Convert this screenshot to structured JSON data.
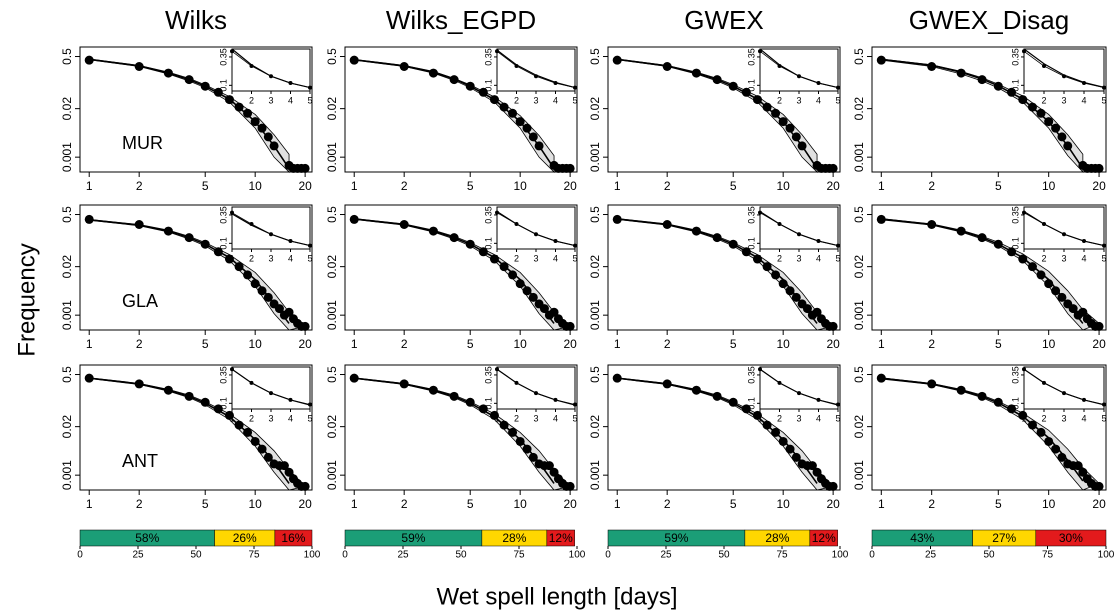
{
  "chart_data": {
    "type": "panel-grid",
    "x_label": "Wet spell length [days]",
    "y_label": "Frequency",
    "columns": [
      "Wilks",
      "Wilks_EGPD",
      "GWEX",
      "GWEX_Disag"
    ],
    "log_x": true,
    "log_y": true,
    "xlim": [
      0.88,
      22
    ],
    "xticks": [
      1,
      2,
      5,
      10,
      20
    ],
    "ylim": [
      0.0004,
      0.9
    ],
    "yticks": [
      0.5,
      0.02,
      0.001
    ],
    "band_color": "#e0e0e0",
    "line_color": "#000000",
    "inset": {
      "xlim": [
        1,
        5
      ],
      "xticks": [
        1,
        2,
        3,
        4,
        5
      ],
      "ylim": [
        0.05,
        0.42
      ],
      "yticks": [
        0.1,
        0.35
      ]
    },
    "rows": [
      {
        "station": "MUR",
        "x": [
          1,
          2,
          3,
          4,
          5,
          6,
          7,
          8,
          9,
          10,
          11,
          12,
          13,
          14,
          15,
          16,
          17,
          18,
          19,
          20
        ],
        "observed": [
          0.4,
          0.27,
          0.18,
          0.12,
          0.08,
          0.055,
          0.035,
          0.022,
          0.015,
          0.009,
          0.006,
          0.0035,
          0.002,
          null,
          null,
          0.0006,
          0.0005,
          0.0005,
          0.0005,
          0.0005
        ]
      },
      {
        "station": "GLA",
        "x": [
          1,
          2,
          3,
          4,
          5,
          6,
          7,
          8,
          9,
          10,
          11,
          12,
          13,
          14,
          15,
          16,
          17,
          18,
          19,
          20
        ],
        "observed": [
          0.37,
          0.27,
          0.18,
          0.12,
          0.08,
          0.05,
          0.032,
          0.02,
          0.012,
          0.007,
          0.0045,
          0.003,
          0.002,
          0.0015,
          0.001,
          0.0012,
          0.0008,
          0.0006,
          0.0005,
          0.0005
        ]
      },
      {
        "station": "ANT",
        "x": [
          1,
          2,
          3,
          4,
          5,
          6,
          7,
          8,
          9,
          10,
          11,
          12,
          13,
          14,
          15,
          16,
          17,
          18,
          19,
          20
        ],
        "observed": [
          0.4,
          0.28,
          0.19,
          0.13,
          0.09,
          0.06,
          0.04,
          0.022,
          0.014,
          0.008,
          0.005,
          0.003,
          0.002,
          0.0018,
          0.0018,
          0.0012,
          0.0008,
          0.0006,
          0.0005,
          0.0005
        ]
      }
    ],
    "sim_x": [
      1,
      2,
      3,
      4,
      5,
      7,
      10,
      13,
      16,
      20
    ],
    "panels": [
      [
        {
          "median": [
            0.42,
            0.28,
            0.18,
            0.12,
            0.08,
            0.036,
            0.009,
            0.002,
            0.0005,
            null
          ],
          "low": [
            0.41,
            0.27,
            0.17,
            0.11,
            0.073,
            0.03,
            0.006,
            0.001,
            0.0004,
            null
          ],
          "high": [
            0.43,
            0.29,
            0.19,
            0.13,
            0.087,
            0.042,
            0.014,
            0.004,
            0.0012,
            null
          ]
        },
        {
          "median": [
            0.41,
            0.28,
            0.19,
            0.125,
            0.08,
            0.035,
            0.009,
            0.002,
            0.0005,
            null
          ],
          "low": [
            0.4,
            0.27,
            0.18,
            0.115,
            0.073,
            0.03,
            0.006,
            0.001,
            0.0004,
            null
          ],
          "high": [
            0.42,
            0.29,
            0.2,
            0.13,
            0.087,
            0.041,
            0.013,
            0.0038,
            0.0011,
            null
          ]
        },
        {
          "median": [
            0.42,
            0.28,
            0.18,
            0.12,
            0.08,
            0.036,
            0.009,
            0.002,
            0.0005,
            null
          ],
          "low": [
            0.41,
            0.27,
            0.17,
            0.11,
            0.072,
            0.03,
            0.006,
            0.001,
            0.0004,
            null
          ],
          "high": [
            0.43,
            0.29,
            0.19,
            0.13,
            0.088,
            0.043,
            0.014,
            0.004,
            0.0012,
            null
          ]
        },
        {
          "median": [
            0.42,
            0.29,
            0.19,
            0.125,
            0.082,
            0.036,
            0.009,
            0.002,
            0.0005,
            null
          ],
          "low": [
            0.4,
            0.27,
            0.17,
            0.11,
            0.072,
            0.03,
            0.006,
            0.0011,
            0.0004,
            null
          ],
          "high": [
            0.43,
            0.3,
            0.2,
            0.135,
            0.09,
            0.044,
            0.014,
            0.004,
            0.0012,
            null
          ]
        }
      ],
      [
        {
          "median": [
            0.36,
            0.26,
            0.18,
            0.12,
            0.08,
            0.035,
            0.009,
            0.002,
            0.0006,
            null
          ],
          "low": [
            0.35,
            0.25,
            0.17,
            0.11,
            0.072,
            0.029,
            0.006,
            0.0011,
            0.0004,
            null
          ],
          "high": [
            0.37,
            0.27,
            0.19,
            0.13,
            0.088,
            0.042,
            0.014,
            0.004,
            0.0012,
            0.0005
          ]
        },
        {
          "median": [
            0.38,
            0.27,
            0.18,
            0.12,
            0.08,
            0.035,
            0.009,
            0.002,
            0.0006,
            null
          ],
          "low": [
            0.37,
            0.26,
            0.17,
            0.11,
            0.072,
            0.029,
            0.006,
            0.0011,
            0.0004,
            null
          ],
          "high": [
            0.39,
            0.28,
            0.19,
            0.13,
            0.088,
            0.042,
            0.014,
            0.004,
            0.0012,
            0.0005
          ]
        },
        {
          "median": [
            0.38,
            0.27,
            0.18,
            0.12,
            0.08,
            0.035,
            0.009,
            0.002,
            0.0006,
            null
          ],
          "low": [
            0.37,
            0.26,
            0.17,
            0.11,
            0.072,
            0.029,
            0.006,
            0.0011,
            0.0004,
            null
          ],
          "high": [
            0.39,
            0.28,
            0.19,
            0.13,
            0.088,
            0.042,
            0.014,
            0.004,
            0.0012,
            0.0005
          ]
        },
        {
          "median": [
            0.38,
            0.27,
            0.18,
            0.12,
            0.08,
            0.035,
            0.009,
            0.002,
            0.0006,
            null
          ],
          "low": [
            0.36,
            0.26,
            0.17,
            0.11,
            0.072,
            0.029,
            0.006,
            0.0011,
            0.0004,
            null
          ],
          "high": [
            0.39,
            0.28,
            0.19,
            0.13,
            0.09,
            0.044,
            0.015,
            0.0045,
            0.0014,
            0.0006
          ]
        }
      ],
      [
        {
          "median": [
            0.4,
            0.28,
            0.19,
            0.13,
            0.085,
            0.037,
            0.009,
            0.0022,
            0.0006,
            null
          ],
          "low": [
            0.39,
            0.27,
            0.18,
            0.12,
            0.077,
            0.031,
            0.006,
            0.0012,
            0.0004,
            null
          ],
          "high": [
            0.41,
            0.29,
            0.2,
            0.14,
            0.093,
            0.044,
            0.014,
            0.0045,
            0.0014,
            0.0005
          ]
        },
        {
          "median": [
            0.4,
            0.28,
            0.19,
            0.13,
            0.085,
            0.037,
            0.009,
            0.0022,
            0.0006,
            null
          ],
          "low": [
            0.39,
            0.27,
            0.18,
            0.12,
            0.077,
            0.031,
            0.006,
            0.0012,
            0.0004,
            null
          ],
          "high": [
            0.41,
            0.29,
            0.2,
            0.14,
            0.093,
            0.044,
            0.014,
            0.0045,
            0.0014,
            0.0005
          ]
        },
        {
          "median": [
            0.4,
            0.28,
            0.19,
            0.13,
            0.085,
            0.037,
            0.009,
            0.0022,
            0.0006,
            null
          ],
          "low": [
            0.39,
            0.27,
            0.18,
            0.12,
            0.077,
            0.031,
            0.006,
            0.0012,
            0.0004,
            null
          ],
          "high": [
            0.41,
            0.29,
            0.2,
            0.14,
            0.093,
            0.044,
            0.014,
            0.0045,
            0.0014,
            0.0005
          ]
        },
        {
          "median": [
            0.4,
            0.28,
            0.19,
            0.13,
            0.087,
            0.038,
            0.01,
            0.0025,
            0.0007,
            null
          ],
          "low": [
            0.38,
            0.27,
            0.18,
            0.12,
            0.077,
            0.031,
            0.006,
            0.0012,
            0.0004,
            null
          ],
          "high": [
            0.41,
            0.29,
            0.2,
            0.14,
            0.095,
            0.046,
            0.016,
            0.005,
            0.0016,
            0.0006
          ]
        }
      ]
    ],
    "bar_colors": [
      "#1b9e77",
      "#ffd700",
      "#e31a1c"
    ],
    "bar_xlim": [
      0,
      100
    ],
    "bar_ticks": [
      0,
      25,
      50,
      75,
      100
    ],
    "bars": [
      {
        "values": [
          58,
          26,
          16
        ],
        "value_labels": [
          "58%",
          "26%",
          "16%"
        ]
      },
      {
        "values": [
          59,
          28,
          12
        ],
        "value_labels": [
          "59%",
          "28%",
          "12%"
        ]
      },
      {
        "values": [
          59,
          28,
          12
        ],
        "value_labels": [
          "59%",
          "28%",
          "12%"
        ]
      },
      {
        "values": [
          43,
          27,
          30
        ],
        "value_labels": [
          "43%",
          "27%",
          "30%"
        ]
      }
    ]
  }
}
